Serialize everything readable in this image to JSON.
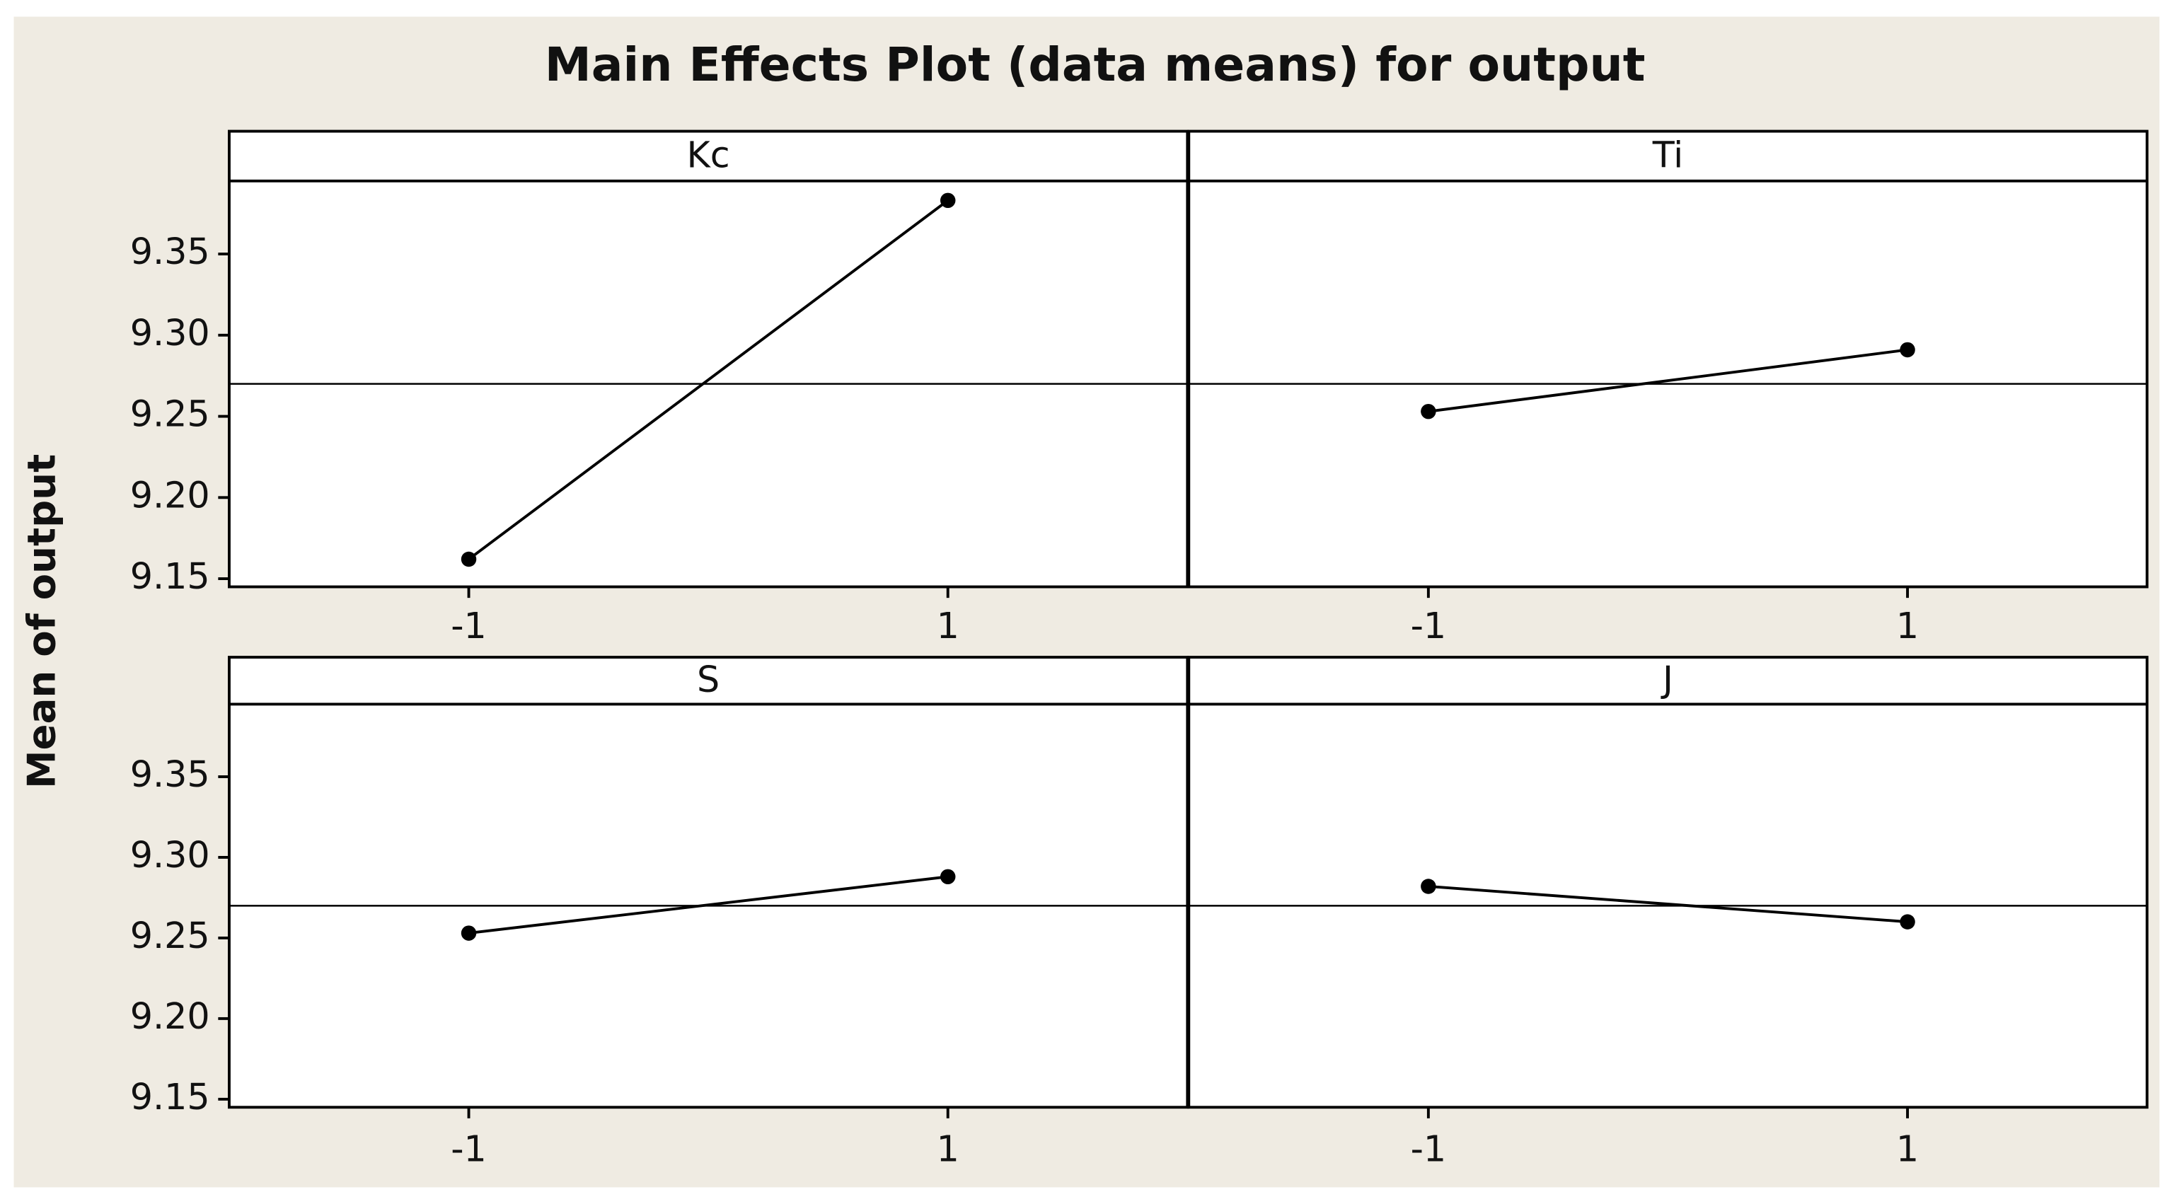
{
  "chart_data": {
    "type": "line",
    "title": "Main Effects Plot (data means) for output",
    "ylabel": "Mean of output",
    "mean": 9.27,
    "ylim": [
      9.145,
      9.395
    ],
    "yticks": [
      9.15,
      {
        "value": 9.2,
        "label": "9.20"
      },
      9.25,
      {
        "value": 9.3,
        "label": "9.30"
      },
      9.35
    ],
    "xlim": [
      -2,
      2
    ],
    "xticks": [
      -1,
      1
    ],
    "color": "#000000",
    "panels": [
      {
        "name": "Kc",
        "x": [
          -1,
          1
        ],
        "values": [
          9.162,
          9.383
        ]
      },
      {
        "name": "Ti",
        "x": [
          -1,
          1
        ],
        "values": [
          9.253,
          9.291
        ]
      },
      {
        "name": "S",
        "x": [
          -1,
          1
        ],
        "values": [
          9.253,
          9.288
        ]
      },
      {
        "name": "J",
        "x": [
          -1,
          1
        ],
        "values": [
          9.282,
          9.26
        ]
      }
    ]
  }
}
